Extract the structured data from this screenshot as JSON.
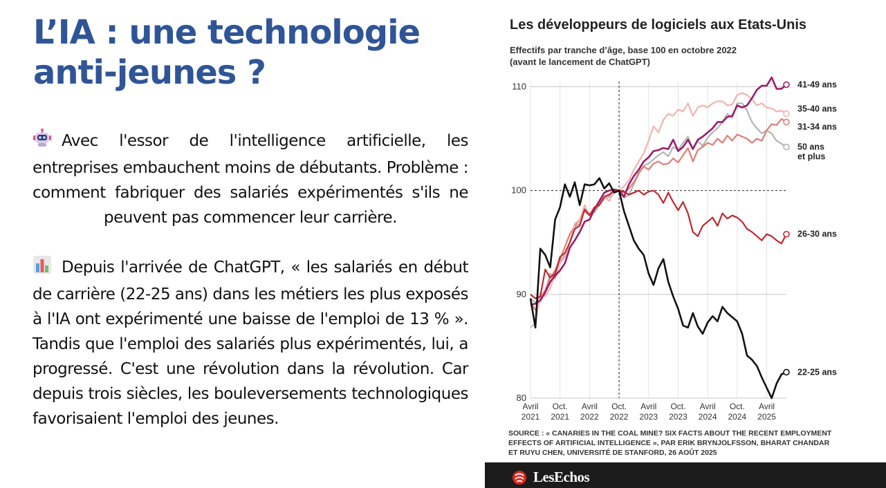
{
  "slide": {
    "title_line1": "L’IA : une technologie",
    "title_line2": "anti-jeunes ?",
    "paragraph1": "Avec l'essor de l'intelligence artificielle, les entreprises embauchent moins de débutants. Problème : comment fabriquer des salariés expérimentés s'ils ne peuvent pas commencer leur carrière.",
    "paragraph2": "Depuis l'arrivée de ChatGPT, « les salariés en début de carrière (22-25 ans) dans les métiers les plus exposés à l'IA ont expérimenté une baisse de l'emploi de 13 % ». Tandis que l'emploi des salariés plus expérimentés, lui, a progressé. C'est une révolution dans la révolution. Car depuis trois siècles, les bouleversements technologiques favorisaient l'emploi des jeunes.",
    "icon1": "robot-icon",
    "icon2": "bar-chart-icon"
  },
  "brand": {
    "name": "LesEchos",
    "icon": "les-echos-logo"
  },
  "chart_data": {
    "type": "line",
    "title": "Les développeurs de logiciels aux Etats-Unis",
    "subtitle_line1": "Effectifs par tranche d’âge, base 100 en octobre 2022",
    "subtitle_line2": "(avant le lancement de ChatGPT)",
    "source_line1": "SOURCE : « CANARIES IN THE COAL MINE? SIX FACTS ABOUT THE RECENT EMPLOYMENT",
    "source_line2": "EFFECTS OF ARTIFICIAL INTELLIGENCE », PAR ERIK BRYNJOLFSSON, BHARAT CHANDAR",
    "source_line3": "ET RUYU CHEN, UNIVERSITÉ DE STANFORD, 26 AOÛT 2025",
    "x_ticks": [
      {
        "label1": "Avril",
        "label2": "2021"
      },
      {
        "label1": "Oct.",
        "label2": "2021"
      },
      {
        "label1": "Avril",
        "label2": "2022"
      },
      {
        "label1": "Oct.",
        "label2": "2022"
      },
      {
        "label1": "Avril",
        "label2": "2023"
      },
      {
        "label1": "Oct.",
        "label2": "2023"
      },
      {
        "label1": "Avril",
        "label2": "2024"
      },
      {
        "label1": "Oct.",
        "label2": "2024"
      },
      {
        "label1": "Avril",
        "label2": "2025"
      }
    ],
    "x_tick_month_index": [
      0,
      6,
      12,
      18,
      24,
      30,
      36,
      42,
      48
    ],
    "x_range_month_index": [
      0,
      52
    ],
    "y_ticks": [
      80,
      90,
      100,
      110
    ],
    "ylim": [
      80,
      110.5
    ],
    "reference_line": 100,
    "reference_month_index": 18,
    "grid": "vertical and horizontal",
    "series": [
      {
        "name": "50 ans et plus",
        "color": "#b3b3b3",
        "label_line1": "50 ans",
        "label_line2": "et plus",
        "values": [
          89.6,
          89.2,
          89.8,
          90.2,
          92.0,
          91.5,
          93.2,
          93.8,
          95.0,
          96.5,
          96.8,
          98.2,
          97.8,
          97.9,
          98.6,
          99.2,
          99.4,
          100.1,
          100.0,
          99.3,
          99.6,
          100.6,
          101.6,
          102.4,
          102.6,
          103.0,
          103.4,
          103.7,
          103.3,
          104.2,
          103.9,
          104.6,
          105.2,
          104.0,
          104.8,
          104.3,
          105.1,
          105.6,
          106.0,
          106.6,
          107.4,
          107.0,
          108.4,
          108.4,
          107.7,
          106.6,
          106.0,
          105.5,
          105.8,
          105.5,
          104.8,
          104.5,
          104.2
        ]
      },
      {
        "name": "31-34 ans",
        "color": "#e07d75",
        "label_line1": "31-34 ans",
        "label_line2": "",
        "values": [
          89.2,
          88.5,
          89.6,
          90.4,
          91.6,
          92.3,
          93.4,
          94.6,
          95.8,
          96.6,
          97.2,
          98.0,
          97.6,
          98.2,
          98.7,
          99.4,
          99.6,
          100.0,
          100.0,
          99.8,
          100.2,
          100.8,
          101.7,
          102.3,
          102.0,
          102.6,
          102.8,
          102.5,
          102.6,
          103.1,
          102.7,
          103.4,
          104.1,
          102.8,
          103.9,
          104.2,
          104.6,
          104.4,
          105.0,
          104.6,
          105.3,
          104.8,
          105.4,
          105.2,
          105.0,
          104.6,
          105.0,
          104.8,
          105.8,
          106.4,
          106.3,
          106.9,
          106.6
        ]
      },
      {
        "name": "35-40 ans",
        "color": "#f2b3ad",
        "label_line1": "35-40 ans",
        "label_line2": "",
        "values": [
          86.8,
          87.2,
          90.2,
          89.8,
          90.6,
          92.0,
          93.0,
          93.6,
          95.0,
          96.8,
          97.2,
          98.6,
          97.6,
          98.2,
          98.9,
          99.4,
          99.0,
          99.9,
          100.0,
          100.4,
          101.0,
          102.0,
          102.8,
          103.6,
          104.8,
          106.2,
          105.6,
          106.8,
          107.4,
          107.2,
          107.8,
          107.6,
          108.4,
          107.2,
          108.0,
          108.2,
          108.0,
          108.4,
          108.6,
          108.6,
          108.2,
          108.3,
          109.2,
          109.4,
          109.2,
          108.8,
          108.2,
          108.4,
          108.0,
          107.9,
          107.6,
          107.7,
          107.4
        ]
      },
      {
        "name": "41-49 ans",
        "color": "#9b1b6b",
        "label_line1": "41-49 ans",
        "label_line2": "",
        "values": [
          89.0,
          89.1,
          89.4,
          90.2,
          91.2,
          91.8,
          92.3,
          93.0,
          94.5,
          95.2,
          96.0,
          97.0,
          97.2,
          98.2,
          99.0,
          99.8,
          100.0,
          100.1,
          100.0,
          99.4,
          100.6,
          101.4,
          102.0,
          102.8,
          103.2,
          103.8,
          103.9,
          104.1,
          104.0,
          104.9,
          103.8,
          104.2,
          104.9,
          104.0,
          104.9,
          105.2,
          105.6,
          106.0,
          106.6,
          106.6,
          107.1,
          107.2,
          108.2,
          108.0,
          108.2,
          108.9,
          109.7,
          110.1,
          110.1,
          110.9,
          109.8,
          109.8,
          110.2
        ]
      },
      {
        "name": "26-30 ans",
        "color": "#c0272d",
        "label_line1": "26-30 ans",
        "label_line2": "",
        "values": [
          90.0,
          89.6,
          89.8,
          92.4,
          91.6,
          92.0,
          93.6,
          94.0,
          95.0,
          96.3,
          96.6,
          98.2,
          97.6,
          98.4,
          98.6,
          99.4,
          99.6,
          100.0,
          100.0,
          99.9,
          99.6,
          99.8,
          100.0,
          99.6,
          99.9,
          100.0,
          99.6,
          98.8,
          99.8,
          98.9,
          98.1,
          98.9,
          97.8,
          96.0,
          95.6,
          96.6,
          97.0,
          97.4,
          96.6,
          97.8,
          97.3,
          97.6,
          97.4,
          97.0,
          96.3,
          96.0,
          95.6,
          95.2,
          95.8,
          95.6,
          95.2,
          94.9,
          95.8
        ]
      },
      {
        "name": "22-25 ans",
        "color": "#111111",
        "label_line1": "22-25 ans",
        "label_line2": "",
        "values": [
          89.6,
          86.8,
          94.4,
          93.8,
          92.6,
          97.2,
          98.4,
          100.6,
          99.4,
          100.8,
          98.6,
          100.6,
          100.5,
          100.6,
          101.2,
          100.2,
          100.7,
          99.8,
          100.0,
          98.0,
          96.6,
          95.2,
          94.4,
          93.8,
          92.0,
          90.9,
          92.5,
          93.4,
          91.2,
          89.8,
          88.6,
          87.0,
          86.8,
          88.2,
          86.9,
          86.2,
          87.3,
          87.9,
          87.4,
          88.8,
          88.2,
          87.8,
          87.4,
          86.2,
          84.1,
          83.7,
          83.1,
          82.0,
          81.0,
          80.0,
          81.4,
          82.3,
          82.5
        ]
      }
    ]
  }
}
